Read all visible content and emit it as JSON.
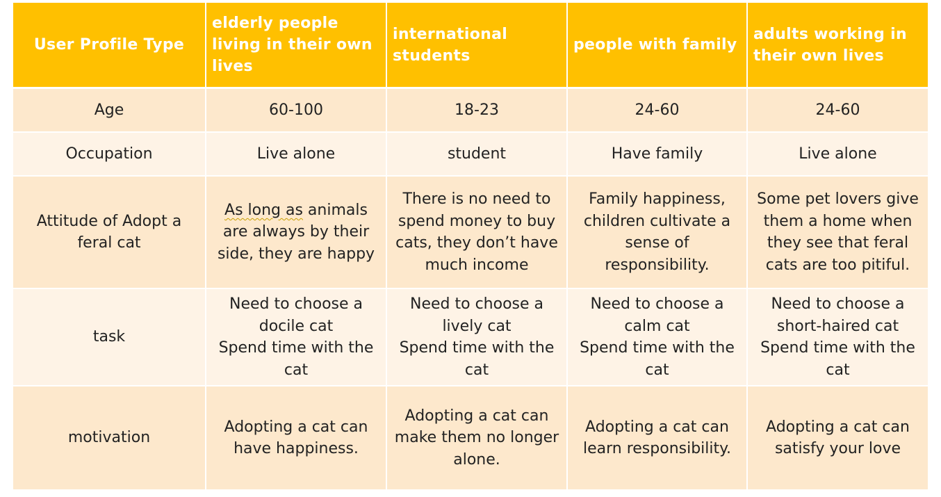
{
  "header": {
    "col0": "User Profile Type",
    "col1": "elderly people living in their own lives",
    "col2": "international students",
    "col3": "people with family",
    "col4": "adults working in their own lives"
  },
  "rows": {
    "age": {
      "label": "Age",
      "c1": "60-100",
      "c2": "18-23",
      "c3": "24-60",
      "c4": "24-60"
    },
    "occupation": {
      "label": "Occupation",
      "c1": "Live alone",
      "c2": "student",
      "c3": "Have family",
      "c4": "Live alone"
    },
    "attitude": {
      "label": "Attitude of Adopt a feral cat",
      "c1_a": "As long as",
      "c1_b": " animals are always by their side, they are happy",
      "c2": "There is no need to spend money to buy cats, they don’t have much income",
      "c3": "Family happiness, children cultivate a sense of responsibility.",
      "c4": "Some pet lovers give them a home when they see that feral cats are too pitiful."
    },
    "task": {
      "label": "task",
      "c1_l1": "Need to choose a docile cat",
      "c1_l2": "Spend time with the cat",
      "c2_l1": "Need to choose a lively cat",
      "c2_l2": "Spend time with the cat",
      "c3_l1": "Need to choose a calm cat",
      "c3_l2": "Spend time with the cat",
      "c4_l1": "Need to choose a short-haired cat",
      "c4_l2": "Spend time with the cat"
    },
    "motivation": {
      "label": "motivation",
      "c1": "Adopting a cat can have happiness.",
      "c2": "Adopting a cat can make them no longer alone.",
      "c3": "Adopting a cat can learn responsibility.",
      "c4": "Adopting a cat can satisfy your love"
    }
  },
  "colors": {
    "header_bg": "#ffc000",
    "row_dark": "#fde8cc",
    "row_light": "#fef3e6"
  }
}
